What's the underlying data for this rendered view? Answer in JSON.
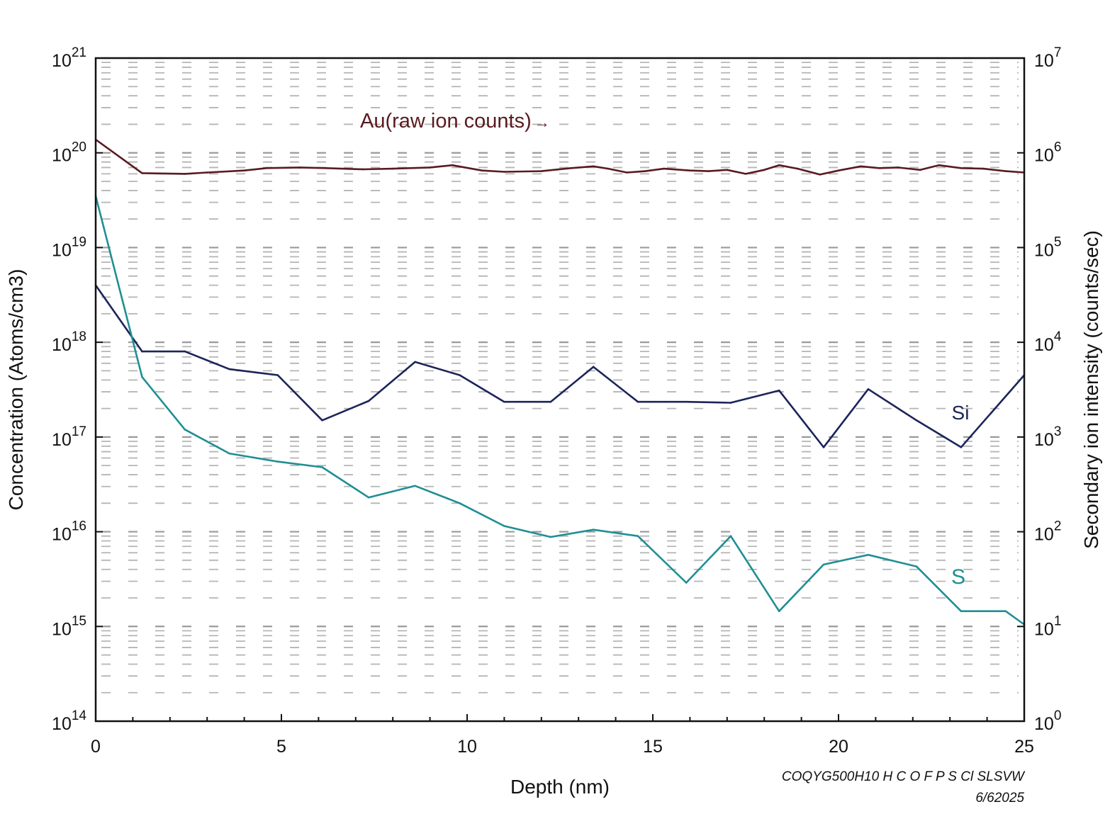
{
  "chart_data": {
    "type": "line",
    "title": "",
    "xlabel": "Depth (nm)",
    "ylabel_left": "Concentration (Atoms/cm3)",
    "ylabel_right": "Secondary ion intensity (counts/sec)",
    "xlim": [
      0,
      25
    ],
    "ylim_left": [
      100000000000000.0,
      1e+21
    ],
    "ylim_right": [
      1,
      10000000.0
    ],
    "yscale": "log",
    "grid": true,
    "x_ticks": [
      0,
      5,
      10,
      15,
      20,
      25
    ],
    "x_tick_labels": [
      "0",
      "5",
      "10",
      "15",
      "20",
      "25"
    ],
    "left_ticks": [
      {
        "base": "10",
        "exp": "21"
      },
      {
        "base": "10",
        "exp": "20"
      },
      {
        "base": "10",
        "exp": "19"
      },
      {
        "base": "10",
        "exp": "18"
      },
      {
        "base": "10",
        "exp": "17"
      },
      {
        "base": "10",
        "exp": "16"
      },
      {
        "base": "10",
        "exp": "15"
      },
      {
        "base": "10",
        "exp": "14"
      }
    ],
    "right_ticks": [
      {
        "base": "10",
        "exp": "7"
      },
      {
        "base": "10",
        "exp": "6"
      },
      {
        "base": "10",
        "exp": "5"
      },
      {
        "base": "10",
        "exp": "4"
      },
      {
        "base": "10",
        "exp": "3"
      },
      {
        "base": "10",
        "exp": "2"
      },
      {
        "base": "10",
        "exp": "1"
      },
      {
        "base": "10",
        "exp": "0"
      }
    ],
    "series": [
      {
        "name": "Au(raw ion counts)",
        "axis": "right",
        "color": "#5a1a1f",
        "label_text": "Au(raw ion counts)",
        "label_arrow": "→",
        "x": [
          0,
          1.25,
          2.4,
          3.0,
          4.0,
          4.6,
          5.5,
          6.2,
          7.2,
          8.0,
          9.0,
          9.6,
          10.4,
          11.0,
          12.0,
          12.8,
          13.4,
          13.8,
          14.3,
          14.8,
          15.3,
          16.0,
          16.5,
          17.0,
          17.5,
          18.0,
          18.4,
          18.9,
          19.5,
          20.0,
          20.6,
          21.1,
          21.6,
          22.2,
          22.7,
          23.3,
          23.9,
          24.5,
          25.0
        ],
        "y": [
          1380000,
          610000,
          600000,
          620000,
          650000,
          690000,
          700000,
          690000,
          670000,
          680000,
          700000,
          740000,
          650000,
          630000,
          640000,
          690000,
          720000,
          680000,
          620000,
          640000,
          680000,
          650000,
          640000,
          660000,
          600000,
          660000,
          740000,
          680000,
          590000,
          650000,
          720000,
          690000,
          700000,
          660000,
          740000,
          690000,
          680000,
          640000,
          620000
        ]
      },
      {
        "name": "Si",
        "axis": "left",
        "color": "#1c2459",
        "label_text": "Si",
        "x": [
          0,
          1.25,
          2.4,
          3.6,
          4.9,
          6.1,
          7.35,
          8.6,
          9.8,
          11.0,
          12.25,
          13.4,
          14.6,
          15.9,
          17.1,
          18.4,
          19.6,
          20.8,
          22.1,
          23.3,
          25.0
        ],
        "y": [
          4e+18,
          8e+17,
          8e+17,
          5.2e+17,
          4.5e+17,
          1.5e+17,
          2.4e+17,
          6.2e+17,
          4.5e+17,
          2.35e+17,
          2.35e+17,
          5.5e+17,
          2.35e+17,
          2.35e+17,
          2.3e+17,
          3.1e+17,
          7.8e+16,
          3.2e+17,
          1.5e+17,
          7.8e+16,
          4.5e+17
        ]
      },
      {
        "name": "S",
        "axis": "left",
        "color": "#1f8f94",
        "label_text": "S",
        "x": [
          0,
          1.25,
          2.4,
          3.6,
          4.9,
          6.1,
          7.35,
          8.6,
          9.8,
          11.0,
          12.25,
          13.4,
          14.6,
          15.9,
          17.1,
          18.4,
          19.6,
          20.8,
          22.1,
          23.3,
          24.5,
          25.0
        ],
        "y": [
          3.5e+19,
          4.3e+17,
          1.2e+17,
          6.7e+16,
          5.5e+16,
          4.8e+16,
          2.3e+16,
          3.05e+16,
          2e+16,
          1.15e+16,
          8800000000000000.0,
          1.05e+16,
          9000000000000000.0,
          2900000000000000.0,
          9000000000000000.0,
          1450000000000000.0,
          4500000000000000.0,
          5700000000000000.0,
          4300000000000000.0,
          1450000000000000.0,
          1450000000000000.0,
          1050000000000000.0
        ]
      }
    ]
  },
  "footer": {
    "code": "COQYG500H10 H C  O F P S Cl SLSVW",
    "date": "6/62025"
  }
}
